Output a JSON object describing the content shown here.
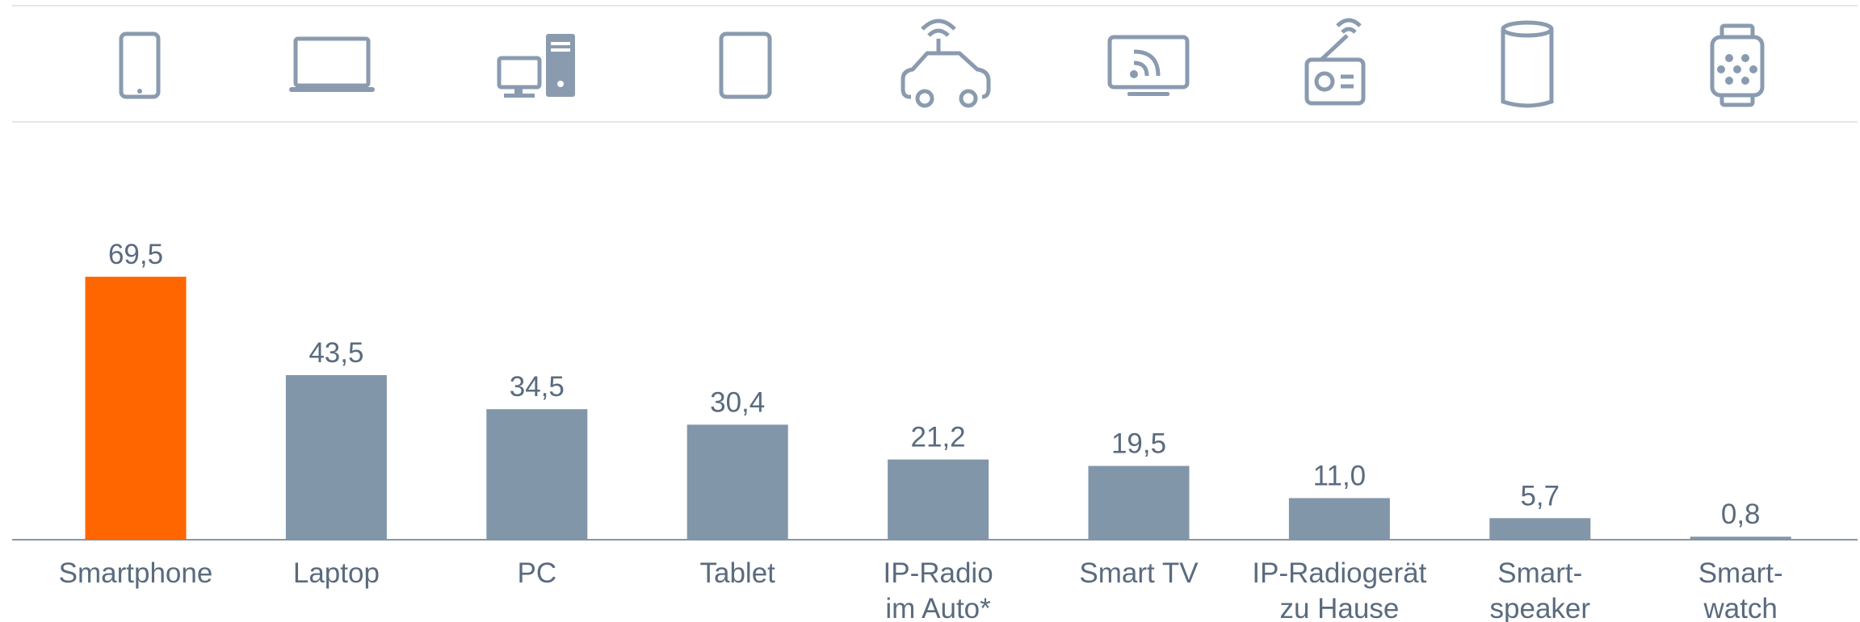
{
  "chart_data": {
    "type": "bar",
    "categories": [
      "Smartphone",
      "Laptop",
      "PC",
      "Tablet",
      "IP-Radio\nim Auto*",
      "Smart TV",
      "IP-Radiogerät\nzu Hause",
      "Smart-\nspeaker",
      "Smart-\nwatch"
    ],
    "values": [
      69.5,
      43.5,
      34.5,
      30.4,
      21.2,
      19.5,
      11.0,
      5.7,
      0.8
    ],
    "value_labels": [
      "69,5",
      "43,5",
      "34,5",
      "30,4",
      "21,2",
      "19,5",
      "11,0",
      "5,7",
      "0,8"
    ],
    "colors": [
      "#ff6600",
      "#8296aa",
      "#8296aa",
      "#8296aa",
      "#8296aa",
      "#8296aa",
      "#8296aa",
      "#8296aa",
      "#8296aa"
    ],
    "ylim": [
      0,
      100
    ]
  }
}
